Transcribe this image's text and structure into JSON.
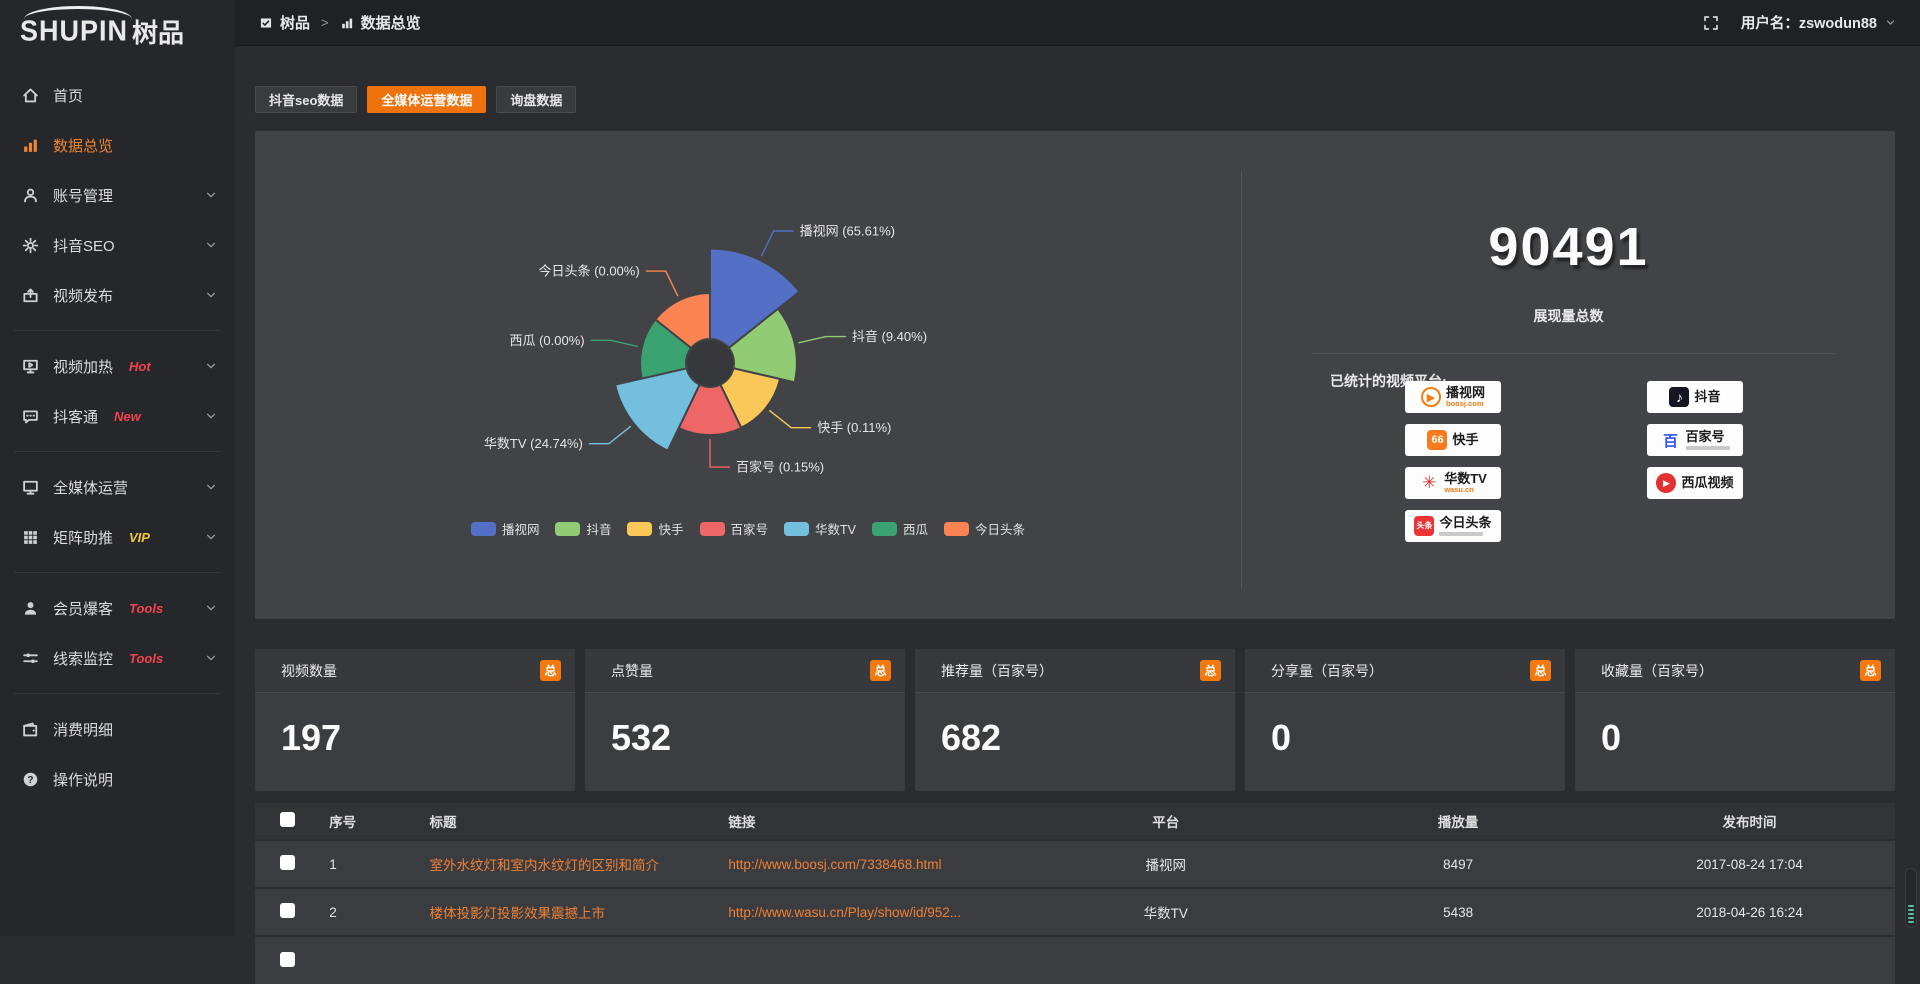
{
  "app": {
    "logo_en": "SHUPIN",
    "logo_cn": "树品"
  },
  "topbar": {
    "breadcrumb": [
      "树品",
      "数据总览"
    ],
    "separator": ">",
    "user_label": "用户名：zswodun88"
  },
  "sidebar": {
    "items": [
      {
        "label": "首页",
        "icon": "home-icon"
      },
      {
        "label": "数据总览",
        "icon": "bar-chart-icon",
        "active": true
      },
      {
        "label": "账号管理",
        "icon": "user-icon",
        "chevron": true
      },
      {
        "label": "抖音SEO",
        "icon": "gear-icon",
        "chevron": true
      },
      {
        "label": "视频发布",
        "icon": "upload-icon",
        "chevron": true,
        "divider_after": true
      },
      {
        "label": "视频加热",
        "icon": "monitor-play-icon",
        "chevron": true,
        "badge": "Hot",
        "badge_color": "#f4434e"
      },
      {
        "label": "抖客通",
        "icon": "chat-icon",
        "chevron": true,
        "badge": "New",
        "badge_color": "#f4434e",
        "divider_after": true
      },
      {
        "label": "全媒体运营",
        "icon": "monitor-icon",
        "chevron": true
      },
      {
        "label": "矩阵助推",
        "icon": "grid-icon",
        "chevron": true,
        "badge": "VIP",
        "badge_color": "#f3c93a",
        "divider_after": true
      },
      {
        "label": "会员爆客",
        "icon": "member-icon",
        "chevron": true,
        "badge": "Tools",
        "badge_color": "#f4434e"
      },
      {
        "label": "线索监控",
        "icon": "sliders-icon",
        "chevron": true,
        "badge": "Tools",
        "badge_color": "#f4434e",
        "divider_after": true
      },
      {
        "label": "消费明细",
        "icon": "wallet-icon"
      },
      {
        "label": "操作说明",
        "icon": "question-icon"
      }
    ]
  },
  "tabs": [
    {
      "label": "抖音seo数据",
      "active": false
    },
    {
      "label": "全媒体运营数据",
      "active": true
    },
    {
      "label": "询盘数据",
      "active": false
    }
  ],
  "chart_data": {
    "type": "pie",
    "subtype": "nightingale-rose",
    "unit": "percent",
    "series": [
      {
        "name": "播视网",
        "value": 65.61,
        "color": "#5470c6"
      },
      {
        "name": "抖音",
        "value": 9.4,
        "color": "#91cc75"
      },
      {
        "name": "快手",
        "value": 0.11,
        "color": "#fac858"
      },
      {
        "name": "百家号",
        "value": 0.15,
        "color": "#ee6666"
      },
      {
        "name": "华数TV",
        "value": 24.74,
        "color": "#73c0de"
      },
      {
        "name": "西瓜",
        "value": 0.0,
        "color": "#3ba272"
      },
      {
        "name": "今日头条",
        "value": 0.0,
        "color": "#fc8452"
      }
    ],
    "label_format": "{name} ({value}%)",
    "legend_position": "bottom"
  },
  "summary": {
    "total_value": "90491",
    "total_label": "展现量总数",
    "platforms_title": "已统计的视频平台:",
    "platforms_left": [
      {
        "name": "播视网",
        "sub": "boosj.com",
        "icon": "boosj-icon"
      },
      {
        "name": "快手",
        "icon": "kuaishou-icon"
      },
      {
        "name": "华数TV",
        "sub": "wasu.cn",
        "icon": "wasu-icon"
      },
      {
        "name": "今日头条",
        "sub_bar": true,
        "icon": "toutiao-icon"
      }
    ],
    "platforms_right": [
      {
        "name": "抖音",
        "icon": "douyin-icon"
      },
      {
        "name": "百家号",
        "sub_bar": true,
        "icon": "baijiahao-icon"
      },
      {
        "name": "西瓜视频",
        "icon": "xigua-icon"
      }
    ]
  },
  "stat_cards": [
    {
      "title": "视频数量",
      "badge": "总",
      "value": "197"
    },
    {
      "title": "点赞量",
      "badge": "总",
      "value": "532"
    },
    {
      "title": "推荐量（百家号）",
      "badge": "总",
      "value": "682"
    },
    {
      "title": "分享量（百家号）",
      "badge": "总",
      "value": "0"
    },
    {
      "title": "收藏量（百家号）",
      "badge": "总",
      "value": "0"
    }
  ],
  "table": {
    "headers": [
      "序号",
      "标题",
      "链接",
      "平台",
      "播放量",
      "发布时间"
    ],
    "rows": [
      {
        "no": "1",
        "title": "室外水纹灯和室内水纹灯的区别和简介",
        "link": "http://www.boosj.com/7338468.html",
        "platform": "播视网",
        "plays": "8497",
        "time": "2017-08-24 17:04"
      },
      {
        "no": "2",
        "title": "楼体投影灯投影效果震撼上市",
        "link": "http://www.wasu.cn/Play/show/id/952...",
        "platform": "华数TV",
        "plays": "5438",
        "time": "2018-04-26 16:24"
      }
    ]
  }
}
